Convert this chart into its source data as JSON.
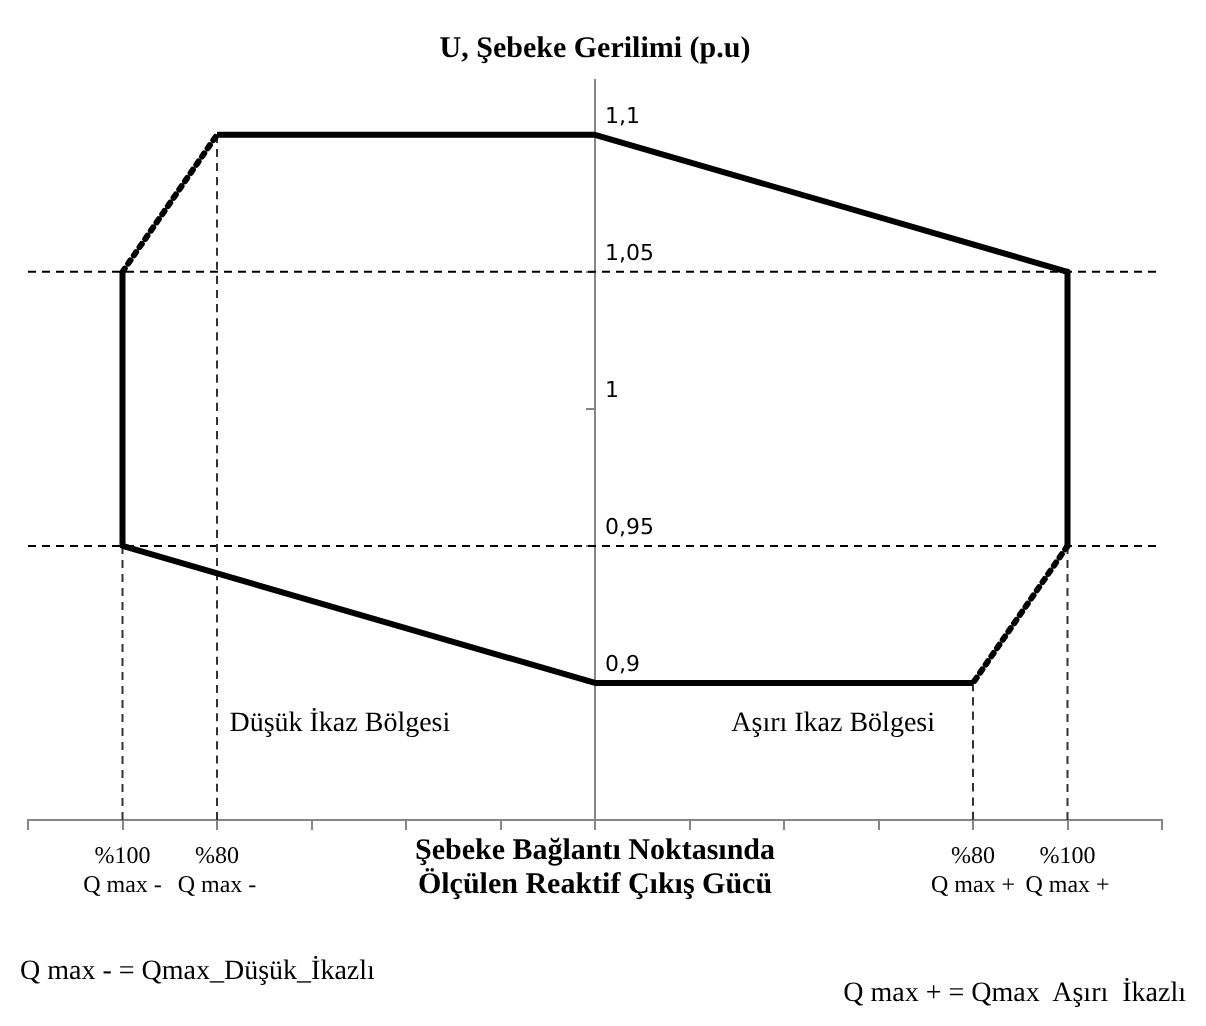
{
  "chart_data": {
    "type": "line",
    "ylabel": "U, Şebeke Gerilimi (p.u)",
    "xlabel": "Şebeke Bağlantı Noktasında Ölçülen Reaktif Çıkış Gücü",
    "xlim": [
      -120,
      120
    ],
    "xticks": [
      {
        "value": -120,
        "label": null
      },
      {
        "value": -100,
        "label": "%100\nQ max -"
      },
      {
        "value": -80,
        "label": "%80\nQ max -"
      },
      {
        "value": -60,
        "label": null
      },
      {
        "value": -40,
        "label": null
      },
      {
        "value": -20,
        "label": null
      },
      {
        "value": 0,
        "label": null
      },
      {
        "value": 20,
        "label": null
      },
      {
        "value": 40,
        "label": null
      },
      {
        "value": 60,
        "label": null
      },
      {
        "value": 80,
        "label": "%80\nQ max +"
      },
      {
        "value": 100,
        "label": "%100\nQ max +"
      },
      {
        "value": 120,
        "label": null
      }
    ],
    "ylim": [
      0.85,
      1.12
    ],
    "yticks": [
      {
        "value": 0.9,
        "label": "0,9"
      },
      {
        "value": 0.95,
        "label": "0,95"
      },
      {
        "value": 1,
        "label": "1"
      },
      {
        "value": 1.05,
        "label": "1,05"
      },
      {
        "value": 1.1,
        "label": "1,1"
      }
    ],
    "marker": "none",
    "series": [
      {
        "color": "#000000",
        "x": [
          -80,
          0,
          100,
          100
        ],
        "values": [
          1.1,
          1.1,
          1.05,
          0.95
        ],
        "line_style": "solid"
      },
      {
        "color": "#000000",
        "x": [
          100,
          80
        ],
        "values": [
          0.95,
          0.9
        ],
        "line_style": "dotted"
      },
      {
        "color": "#000000",
        "x": [
          80,
          0,
          -100,
          -100
        ],
        "values": [
          0.9,
          0.9,
          0.95,
          1.05
        ],
        "line_style": "solid"
      },
      {
        "color": "#000000",
        "x": [
          -100,
          -80
        ],
        "values": [
          1.05,
          1.1
        ],
        "line_style": "dotted"
      },
      {
        "color": "#333333",
        "x": [
          -100,
          -100
        ],
        "values": [
          0.85,
          0.95
        ],
        "line_style": "dashed"
      },
      {
        "color": "#333333",
        "x": [
          -80,
          -80
        ],
        "values": [
          0.85,
          1.1
        ],
        "line_style": "dashed"
      },
      {
        "color": "#333333",
        "x": [
          80,
          80
        ],
        "values": [
          0.85,
          0.9
        ],
        "line_style": "dashed"
      },
      {
        "color": "#333333",
        "x": [
          100,
          100
        ],
        "values": [
          0.85,
          0.95
        ],
        "line_style": "dashed"
      }
    ],
    "ref_lines": [
      {
        "axis": "y",
        "value": 1.05,
        "line_style": "dashed",
        "color": "#000000"
      },
      {
        "axis": "y",
        "value": 0.95,
        "line_style": "dashed",
        "color": "#000000"
      }
    ],
    "annotations": [
      "Düşük İkaz Bölgesi",
      "Aşırı Ikaz Bölgesi",
      "Q max - = Qmax_Düşük_İkazlı",
      "Q max + = Qmax  Aşırı  İkazlı"
    ]
  }
}
